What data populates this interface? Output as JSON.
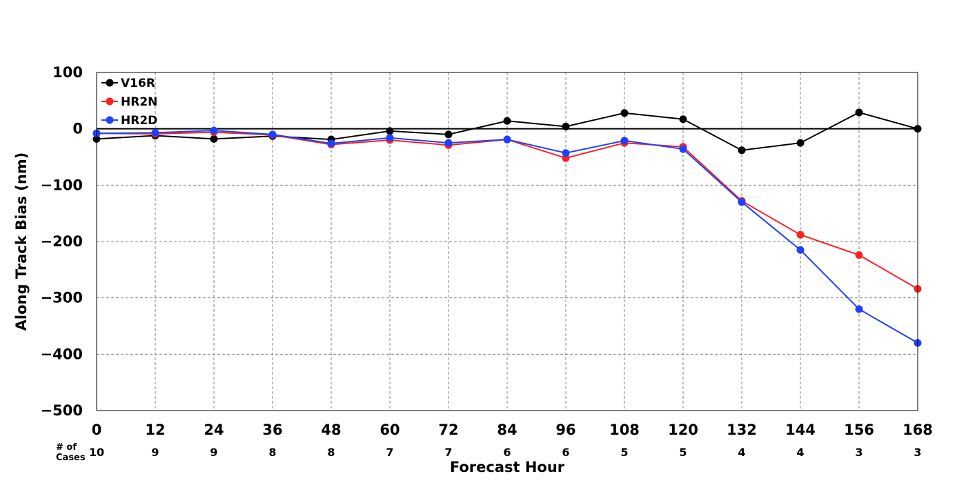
{
  "chart_data": {
    "type": "line",
    "title": "",
    "xlabel": "Forecast Hour",
    "ylabel": "Along Track Bias (nm)",
    "x": [
      0,
      12,
      24,
      36,
      48,
      60,
      72,
      84,
      96,
      108,
      120,
      132,
      144,
      156,
      168
    ],
    "xlim": [
      0,
      168
    ],
    "ylim": [
      -500,
      100
    ],
    "yticks": [
      100,
      0,
      -100,
      -200,
      -300,
      -400,
      -500
    ],
    "ytick_labels": [
      "100",
      "0",
      "−100",
      "−200",
      "−300",
      "−400",
      "−500"
    ],
    "grid": true,
    "zero_line": true,
    "legend_position": "top-left",
    "cases_title": [
      "# of",
      "Cases"
    ],
    "cases": [
      10,
      9,
      9,
      8,
      8,
      7,
      7,
      6,
      6,
      5,
      5,
      4,
      4,
      3,
      3
    ],
    "series": [
      {
        "name": "V16R",
        "color": "#000000",
        "values": [
          -18,
          -12,
          -18,
          -13,
          -19,
          -4,
          -10,
          14,
          4,
          28,
          17,
          -38,
          -25,
          29,
          0
        ]
      },
      {
        "name": "HR2N",
        "color": "#ff2020",
        "values": [
          -8,
          -9,
          -6,
          -11,
          -28,
          -20,
          -29,
          -19,
          -52,
          -25,
          -32,
          -128,
          -188,
          -224,
          -284
        ]
      },
      {
        "name": "HR2D",
        "color": "#2040ff",
        "values": [
          -8,
          -7,
          -3,
          -10,
          -26,
          -16,
          -25,
          -19,
          -43,
          -21,
          -36,
          -130,
          -215,
          -320,
          -380
        ]
      }
    ]
  }
}
